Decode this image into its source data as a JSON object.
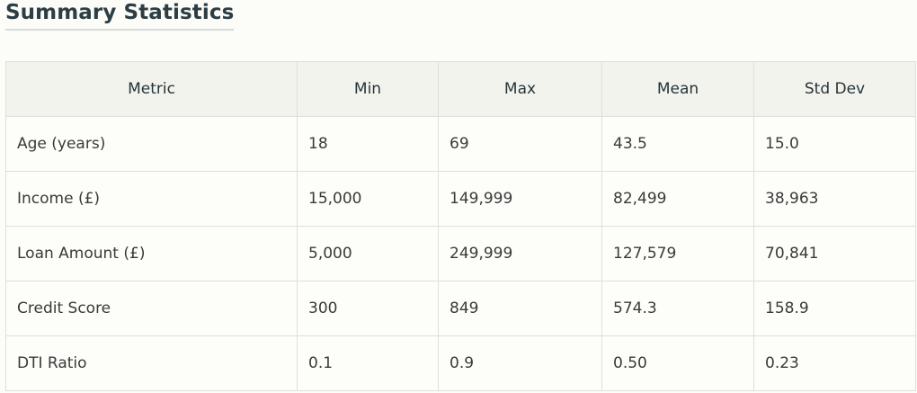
{
  "title": "Summary Statistics",
  "columns": [
    "Metric",
    "Min",
    "Max",
    "Mean",
    "Std Dev"
  ],
  "rows": [
    [
      "Age (years)",
      "18",
      "69",
      "43.5",
      "15.0"
    ],
    [
      "Income (£)",
      "15,000",
      "149,999",
      "82,499",
      "38,963"
    ],
    [
      "Loan Amount (£)",
      "5,000",
      "249,999",
      "127,579",
      "70,841"
    ],
    [
      "Credit Score",
      "300",
      "849",
      "574.3",
      "158.9"
    ],
    [
      "DTI Ratio",
      "0.1",
      "0.9",
      "0.50",
      "0.23"
    ]
  ]
}
